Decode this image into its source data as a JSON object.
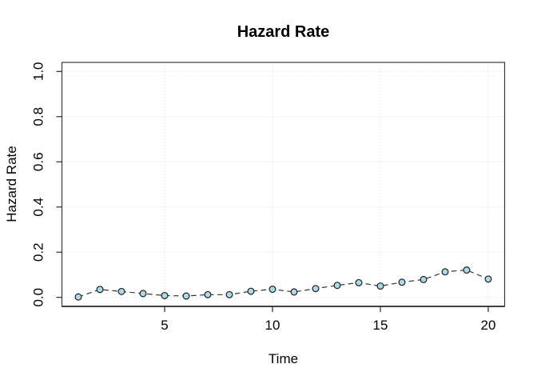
{
  "chart_data": {
    "type": "line",
    "title": "Hazard Rate",
    "xlabel": "Time",
    "ylabel": "Hazard Rate",
    "legend": "none",
    "grid": "dotted",
    "line_style": "dashed",
    "marker": "circle-filled",
    "x": [
      1,
      2,
      3,
      4,
      5,
      6,
      7,
      8,
      9,
      10,
      11,
      12,
      13,
      14,
      15,
      16,
      17,
      18,
      19,
      20
    ],
    "values": [
      0.002,
      0.035,
      0.026,
      0.017,
      0.008,
      0.006,
      0.012,
      0.012,
      0.027,
      0.036,
      0.024,
      0.039,
      0.053,
      0.065,
      0.05,
      0.067,
      0.079,
      0.113,
      0.121,
      0.081
    ],
    "xlim": [
      1,
      20
    ],
    "ylim": [
      0,
      1
    ],
    "x_ticks": [
      "5",
      "10",
      "15",
      "20"
    ],
    "y_ticks": [
      "0.0",
      "0.2",
      "0.4",
      "0.6",
      "0.8",
      "1.0"
    ],
    "colors": {
      "marker_fill": "#ADD8E6",
      "marker_stroke": "#1f1f1f",
      "line": "#333333",
      "grid": "#d6d6d6",
      "box": "#3a3a3a",
      "axis": "#2b2b2b",
      "text": "#000000",
      "background": "#ffffff"
    }
  }
}
